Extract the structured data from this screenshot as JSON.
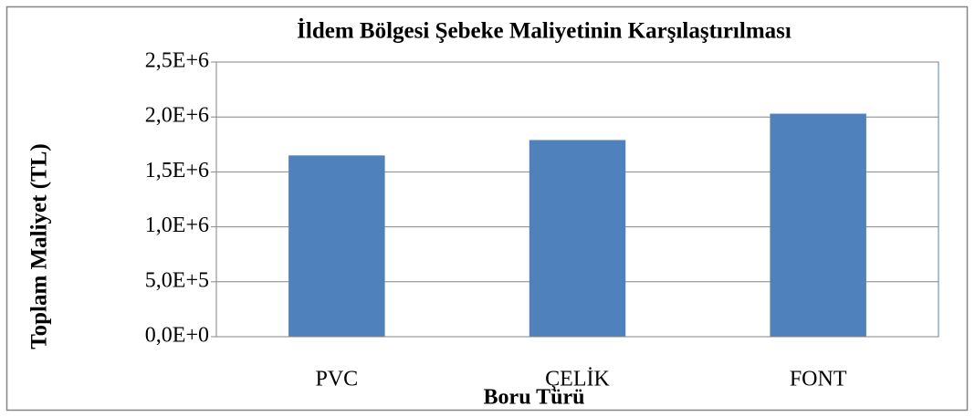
{
  "chart_data": {
    "type": "bar",
    "title": "İldem Bölgesi Şebeke Maliyetinin Karşılaştırılması",
    "x_label": "Boru Türü",
    "y_label": "Toplam Maliyet (TL)",
    "categories": [
      "PVC",
      "ÇELİK",
      "FONT"
    ],
    "values": [
      1650000,
      1790000,
      2030000
    ],
    "color": "#4f81bd",
    "ylim": [
      0,
      2500000
    ],
    "yticks": [
      {
        "value": 0,
        "label": "0,0E+0"
      },
      {
        "value": 500000,
        "label": "5,0E+5"
      },
      {
        "value": 1000000,
        "label": "1,0E+6"
      },
      {
        "value": 1500000,
        "label": "1,5E+6"
      },
      {
        "value": 2000000,
        "label": "2,0E+6"
      },
      {
        "value": 2500000,
        "label": "2,5E+6"
      }
    ],
    "grid": true
  }
}
